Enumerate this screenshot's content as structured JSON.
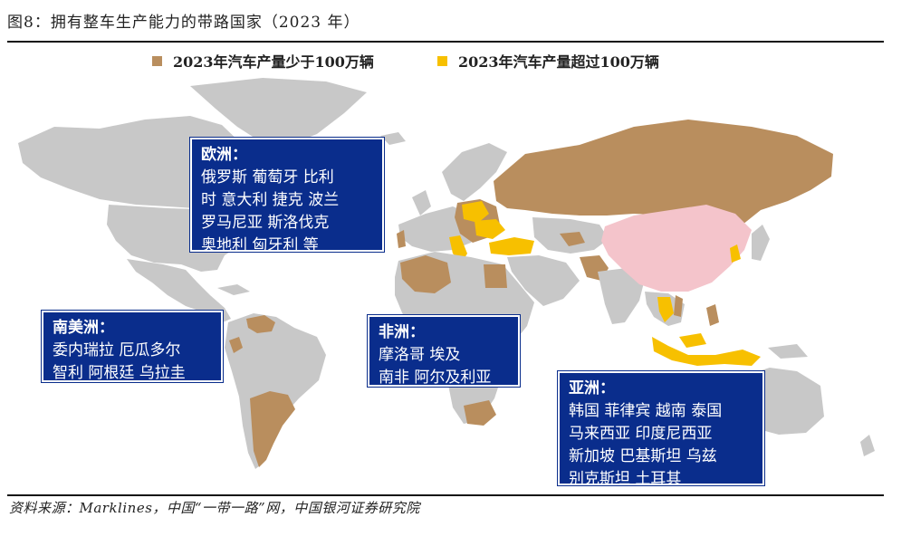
{
  "figure": {
    "title": "图8：拥有整车生产能力的带路国家（2023 年）",
    "source": "资料来源：Marklines，中国“一带一路”网，中国银河证券研究院"
  },
  "legend": [
    {
      "label": "2023年汽车产量少于100万辆",
      "color": "#b98e5e"
    },
    {
      "label": "2023年汽车产量超过100万辆",
      "color": "#f7c000"
    }
  ],
  "colors": {
    "land": "#c8c8c8",
    "china": "#f4c4cb",
    "under_1m": "#b98e5e",
    "over_1m": "#f7c000",
    "box_bg": "#0a2d8c"
  },
  "regions": {
    "europe": {
      "heading": "欧洲：",
      "lines": [
        "俄罗斯 葡萄牙 比利",
        "时 意大利 捷克 波兰",
        "罗马尼亚 斯洛伐克",
        "奥地利 匈牙利 等"
      ]
    },
    "south_america": {
      "heading": "南美洲：",
      "lines": [
        "委内瑞拉 厄瓜多尔",
        "智利 阿根廷 乌拉圭"
      ]
    },
    "africa": {
      "heading": "非洲：",
      "lines": [
        "摩洛哥 埃及",
        "南非 阿尔及利亚"
      ]
    },
    "asia": {
      "heading": "亚洲：",
      "lines": [
        "韩国 菲律宾 越南 泰国",
        "马来西亚 印度尼西亚",
        "新加坡 巴基斯坦 乌兹",
        "别克斯坦 土耳其"
      ]
    }
  }
}
